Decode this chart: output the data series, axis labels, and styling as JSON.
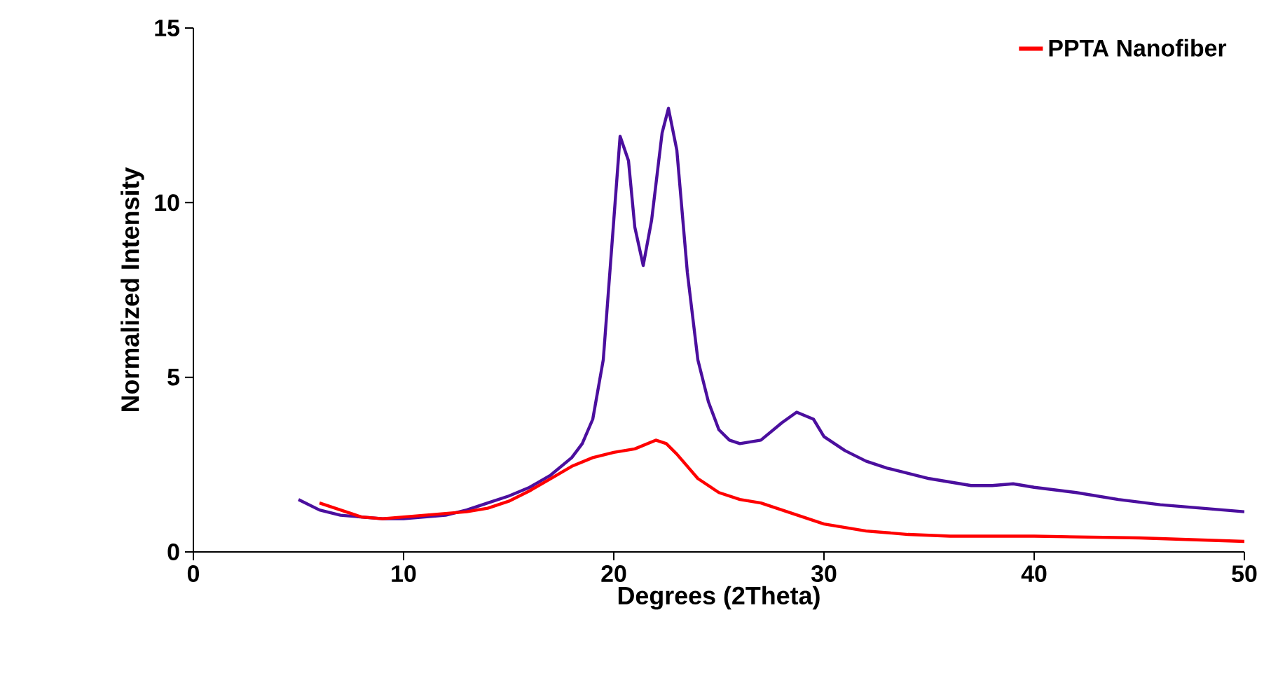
{
  "chart_data": {
    "type": "line",
    "xlabel": "Degrees (2Theta)",
    "ylabel": "Normalized Intensity",
    "xlim": [
      0,
      50
    ],
    "ylim": [
      0,
      15
    ],
    "xticks": [
      0,
      10,
      20,
      30,
      40,
      50
    ],
    "yticks": [
      0,
      5,
      10,
      15
    ],
    "legend": "top right",
    "grid": false,
    "series": [
      {
        "color": "#4b0f9e",
        "x": [
          5,
          6,
          7,
          8,
          9,
          10,
          11,
          12,
          13,
          14,
          15,
          16,
          17,
          18,
          18.5,
          19,
          19.5,
          20,
          20.3,
          20.7,
          21,
          21.4,
          21.8,
          22.3,
          22.6,
          23,
          23.5,
          24,
          24.5,
          25,
          25.5,
          26,
          27,
          28,
          28.7,
          29.5,
          30,
          31,
          32,
          33,
          34,
          35,
          36,
          37,
          38,
          39,
          40,
          42,
          44,
          46,
          48,
          50
        ],
        "values": [
          1.5,
          1.2,
          1.05,
          1.0,
          0.95,
          0.95,
          1.0,
          1.05,
          1.2,
          1.4,
          1.6,
          1.85,
          2.2,
          2.7,
          3.1,
          3.8,
          5.5,
          9.5,
          11.9,
          11.2,
          9.3,
          8.2,
          9.5,
          12.0,
          12.7,
          11.5,
          8.0,
          5.5,
          4.3,
          3.5,
          3.2,
          3.1,
          3.2,
          3.7,
          4.0,
          3.8,
          3.3,
          2.9,
          2.6,
          2.4,
          2.25,
          2.1,
          2.0,
          1.9,
          1.9,
          1.95,
          1.85,
          1.7,
          1.5,
          1.35,
          1.25,
          1.15
        ]
      },
      {
        "name": "PPTA Nanofiber",
        "color": "#ff0000",
        "x": [
          6,
          7,
          8,
          9,
          10,
          11,
          12,
          13,
          14,
          15,
          16,
          17,
          18,
          19,
          20,
          21,
          22,
          22.5,
          23,
          24,
          25,
          26,
          27,
          28,
          29,
          30,
          32,
          34,
          36,
          40,
          45,
          50
        ],
        "values": [
          1.4,
          1.2,
          1.0,
          0.95,
          1.0,
          1.05,
          1.1,
          1.15,
          1.25,
          1.45,
          1.75,
          2.1,
          2.45,
          2.7,
          2.85,
          2.95,
          3.2,
          3.1,
          2.8,
          2.1,
          1.7,
          1.5,
          1.4,
          1.2,
          1.0,
          0.8,
          0.6,
          0.5,
          0.45,
          0.45,
          0.4,
          0.3
        ]
      }
    ]
  }
}
